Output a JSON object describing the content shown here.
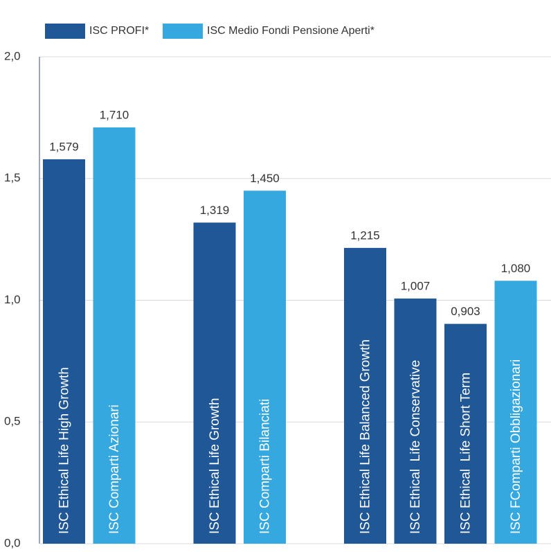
{
  "chart_data": {
    "type": "bar",
    "categories": [
      "ISC Ethical Life High Growth",
      "ISC Comparti Azionari",
      "ISC Ethical Life Growth",
      "ISC Comparti Bilanciati",
      "ISC Ethical Life Balanced Growth",
      "ISC Ethical  Life Conservative",
      "ISC Ethical  Life Short Term",
      "ISC FComparti Obbligazionari"
    ],
    "series": [
      {
        "name": "ISC PROFI*",
        "color": "#1f5797",
        "values": [
          1.579,
          null,
          1.319,
          null,
          1.215,
          1.007,
          0.903,
          null
        ],
        "value_labels": [
          "1,579",
          null,
          "1,319",
          null,
          "1,215",
          "1,007",
          "0,903",
          null
        ]
      },
      {
        "name": "ISC Medio Fondi Pensione Aperti*",
        "color": "#35a8e0",
        "values": [
          null,
          1.71,
          null,
          1.45,
          null,
          null,
          null,
          1.08
        ],
        "value_labels": [
          null,
          "1,710",
          null,
          "1,450",
          null,
          null,
          null,
          "1,080"
        ]
      }
    ],
    "ylim": [
      0,
      2
    ],
    "yticks": [
      {
        "value": 0,
        "label": "0,0"
      },
      {
        "value": 0.5,
        "label": "0,5"
      },
      {
        "value": 1,
        "label": "1,0"
      },
      {
        "value": 1.5,
        "label": "1,5"
      },
      {
        "value": 2,
        "label": "2,0"
      }
    ],
    "grid": true,
    "legend": "top"
  }
}
